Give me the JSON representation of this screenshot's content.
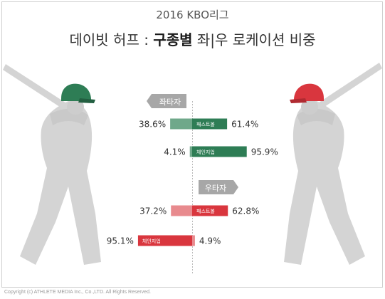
{
  "header": {
    "subtitle": "2016 KBO리그",
    "title_prefix": "데이빗 허프 : ",
    "title_bold": "구종별",
    "title_suffix": " 좌|우 로케이션 비중"
  },
  "footer": {
    "copyright": "Copyright (c) ATHLETE MEDIA Inc., Co.,LTD. All Rights Reserved."
  },
  "chart_data": {
    "type": "bar",
    "orientation": "diverging-horizontal",
    "groups": [
      {
        "label": "좌타자",
        "color": "#2e7d55",
        "rows": [
          {
            "category": "패스트볼",
            "left": 38.6,
            "right": 61.4,
            "left_label": "38.6%",
            "right_label": "61.4%",
            "inner_side": "right"
          },
          {
            "category": "체인지업",
            "left": 4.1,
            "right": 95.9,
            "left_label": "4.1%",
            "right_label": "95.9%",
            "inner_side": "right"
          }
        ]
      },
      {
        "label": "우타자",
        "color": "#d9363e",
        "rows": [
          {
            "category": "패스트볼",
            "left": 37.2,
            "right": 62.8,
            "left_label": "37.2%",
            "right_label": "62.8%",
            "inner_side": "right"
          },
          {
            "category": "체인지업",
            "left": 95.1,
            "right": 4.9,
            "left_label": "95.1%",
            "right_label": "4.9%",
            "inner_side": "left"
          }
        ]
      }
    ],
    "colors": {
      "left_batter": "#2e7d55",
      "right_batter": "#d9363e",
      "arrow": "#a7a7a7",
      "player": "#d4d4d4"
    }
  }
}
